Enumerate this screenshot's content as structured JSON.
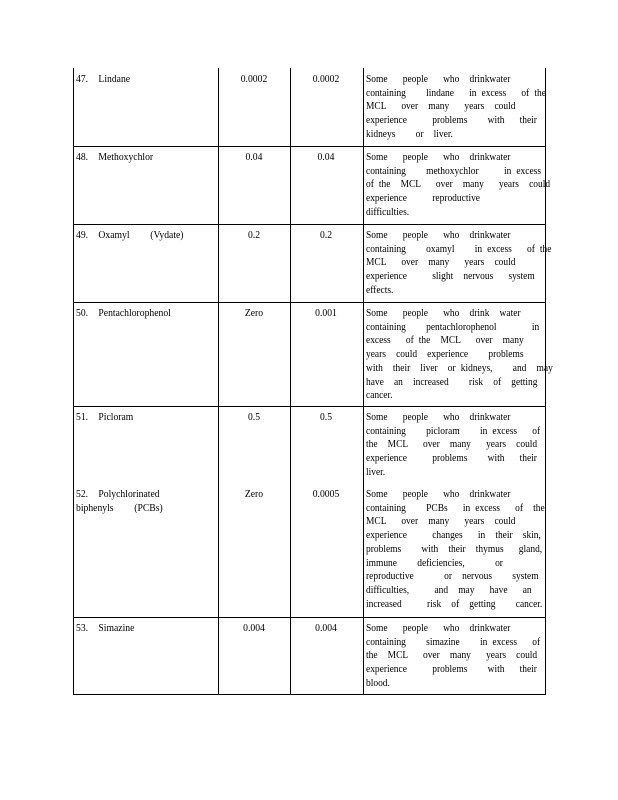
{
  "rows": [
    {
      "name": "47.  Lindane",
      "mclg": "0.0002",
      "mcl": "0.0002",
      "description": [
        "Some   people   who  drinkwater",
        "containing    lindane   in excess   of the",
        "MCL   over  many   years  could",
        "experience     problems    with   their",
        "kidneys    or  liver."
      ]
    },
    {
      "name": "48.  Methoxychlor",
      "mclg": "0.04",
      "mcl": "0.04",
      "description": [
        "Some   people   who  drinkwater",
        "containing    methoxychlor     in excess",
        "of the  MCL   over  many   years  could",
        "experience     reproductive",
        "difficulties."
      ]
    },
    {
      "name": "49.  Oxamyl    (Vydate)",
      "mclg": "0.2",
      "mcl": "0.2",
      "description": [
        "Some   people   who  drinkwater",
        "containing    oxamyl    in excess   of the",
        "MCL   over  many   years  could",
        "experience     slight  nervous   system",
        "effects."
      ]
    },
    {
      "name": "50.  Pentachlorophenol",
      "mclg": "Zero",
      "mcl": "0.001",
      "description": [
        "Some   people   who  drink  water",
        "containing    pentachlorophenol       in",
        "excess   of the  MCL   over  many",
        "years  could  experience    problems",
        "with  their  liver  or kidneys,    and  may",
        "have  an  increased    risk  of  getting",
        "cancer."
      ]
    },
    {
      "name": "51.  Picloram",
      "mclg": "0.5",
      "mcl": "0.5",
      "description": [
        "Some   people   who  drinkwater",
        "containing    picloram    in excess   of",
        "the  MCL   over  many   years  could",
        "experience     problems    with   their",
        "liver."
      ]
    },
    {
      "name": "52.  Polychlorinated\nbiphenyls    (PCBs)",
      "mclg": "Zero",
      "mcl": "0.0005",
      "description": [
        "Some   people   who  drinkwater",
        "containing    PCBs   in excess   of  the",
        "MCL   over  many   years  could",
        "experience     changes   in  their  skin,",
        "problems    with  their  thymus   gland,",
        "immune    deficiencies,      or",
        "reproductive      or  nervous    system",
        "difficulties,     and  may   have   an",
        "increased     risk  of  getting    cancer."
      ]
    },
    {
      "name": "53.  Simazine",
      "mclg": "0.004",
      "mcl": "0.004",
      "description": [
        "Some   people   who  drinkwater",
        "containing    simazine    in excess   of",
        "the  MCL   over  many   years  could",
        "experience     problems    with   their",
        "blood."
      ]
    }
  ]
}
